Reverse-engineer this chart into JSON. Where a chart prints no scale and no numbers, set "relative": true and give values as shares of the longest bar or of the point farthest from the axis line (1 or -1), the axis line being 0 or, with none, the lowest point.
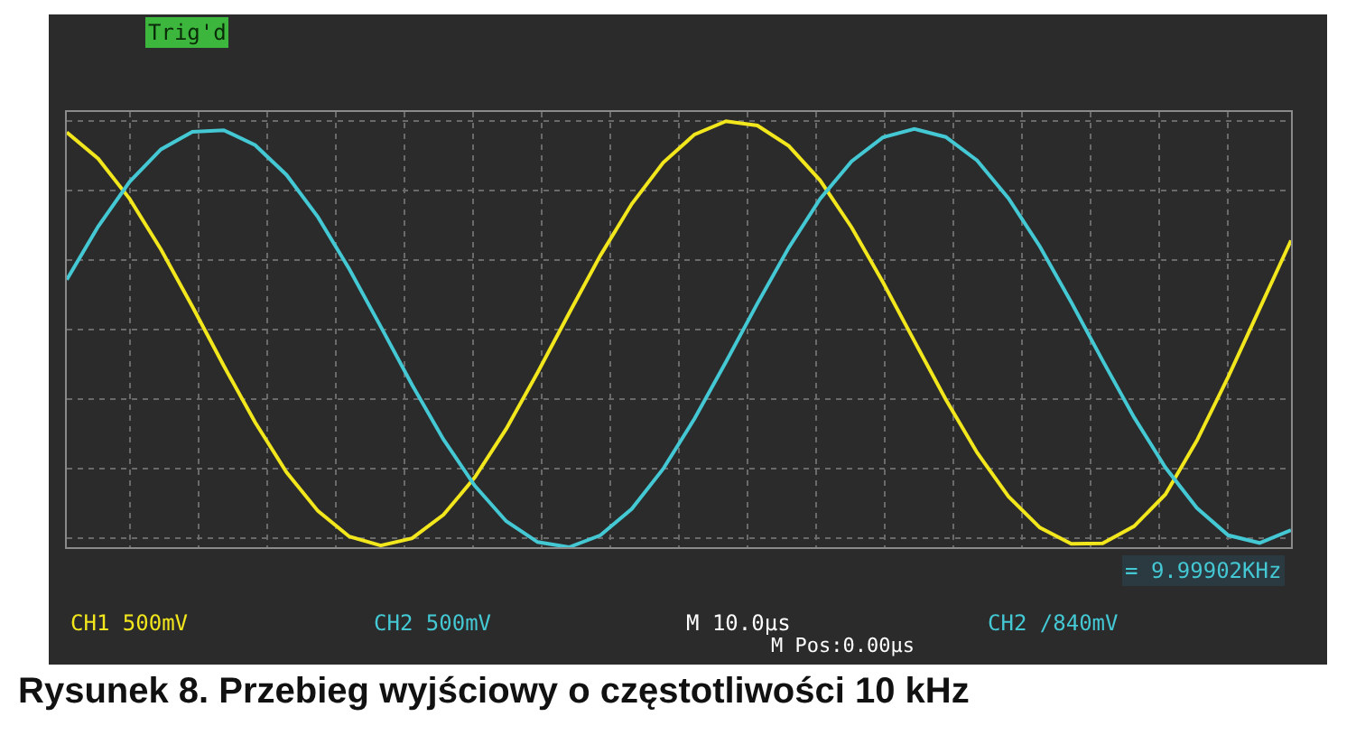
{
  "chart_data": {
    "type": "line",
    "relative": true,
    "grid": true,
    "line_style": "solid",
    "marker": "none",
    "categories": [
      null,
      null,
      null,
      null,
      null,
      null,
      null,
      null,
      null,
      null,
      null,
      null,
      null,
      null,
      null,
      null,
      null,
      null,
      null,
      null,
      null,
      null,
      null,
      null,
      null,
      null,
      null,
      null,
      null,
      null,
      null,
      null,
      null,
      null,
      null,
      null,
      null,
      null,
      null,
      null
    ],
    "series": [
      {
        "color": "#f2e61c",
        "values": [
          0.974,
          0.912,
          0.818,
          0.699,
          0.565,
          0.426,
          0.293,
          0.176,
          0.085,
          0.025,
          0.004,
          0.021,
          0.076,
          0.164,
          0.278,
          0.41,
          0.549,
          0.685,
          0.806,
          0.903,
          0.969,
          1,
          0.99,
          0.942,
          0.861,
          0.751,
          0.622,
          0.484,
          0.347,
          0.222,
          0.119,
          0.046,
          0.008,
          0.009,
          0.049,
          0.124,
          0.25,
          0.4,
          0.56,
          0.72
        ]
      },
      {
        "color": "#44c8d4",
        "values": [
          0.628,
          0.753,
          0.858,
          0.934,
          0.975,
          0.979,
          0.944,
          0.874,
          0.775,
          0.653,
          0.518,
          0.381,
          0.253,
          0.144,
          0.061,
          0.012,
          0,
          0.028,
          0.09,
          0.184,
          0.302,
          0.435,
          0.572,
          0.703,
          0.818,
          0.906,
          0.962,
          0.982,
          0.963,
          0.908,
          0.819,
          0.706,
          0.575,
          0.438,
          0.305,
          0.187,
          0.092,
          0.028,
          0.01,
          0.04
        ]
      }
    ],
    "annotations": [
      "Trig'd",
      "CH1 500mV",
      "CH2 500mV",
      "M 10.0µs",
      "M Pos:0.00µs",
      "CH2 /840mV",
      "= 9.99902KHz",
      "Rysunek 8. Przebieg wyjściowy o częstotliwości 10 kHz"
    ]
  }
}
